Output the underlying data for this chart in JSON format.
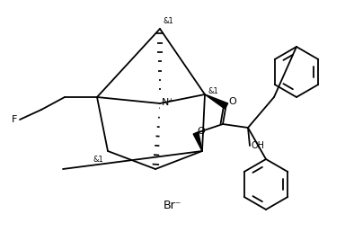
{
  "background": "#ffffff",
  "line_color": "#000000",
  "lw": 1.3,
  "fs": 7,
  "br_text": "Br⁻",
  "n_plus": "N⁺",
  "oh_text": "OH",
  "f_text": "F",
  "o_text": "O",
  "stereo_label": "&1",
  "scale": 1.0
}
